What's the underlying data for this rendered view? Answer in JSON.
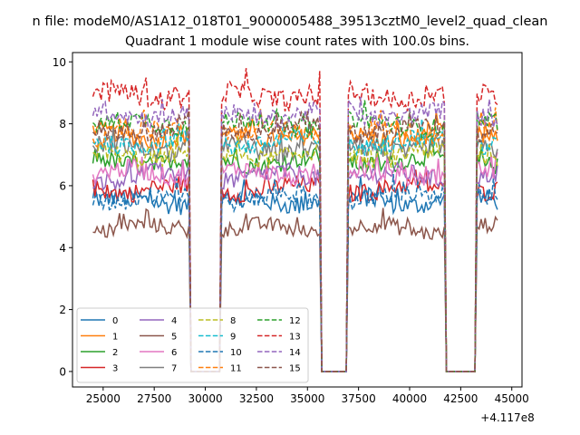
{
  "figure": {
    "suptitle": "n file: modeM0/AS1A12_018T01_9000005488_39513cztM0_level2_quad_clean",
    "title": "Quadrant 1 module wise count rates with 100.0s bins.",
    "offset_text": "+4.117e8"
  },
  "chart_data": {
    "type": "line",
    "title": "Quadrant 1 module wise count rates with 100.0s bins.",
    "xlabel": "",
    "ylabel": "",
    "x_offset": 411700000,
    "xlim": [
      23500,
      45500
    ],
    "ylim": [
      -0.5,
      10.3
    ],
    "xticks": [
      25000,
      27500,
      30000,
      32500,
      35000,
      37500,
      40000,
      42500,
      45000
    ],
    "xtick_labels": [
      "25000",
      "27500",
      "30000",
      "32500",
      "35000",
      "37500",
      "40000",
      "42500",
      "45000"
    ],
    "yticks": [
      0,
      2,
      4,
      6,
      8,
      10
    ],
    "ytick_labels": [
      "0",
      "2",
      "4",
      "6",
      "8",
      "10"
    ],
    "grid": false,
    "legend_position": "lower-left",
    "legend_columns": 4,
    "x_bins": {
      "start": 24500,
      "step": 100,
      "count": 199
    },
    "good_time_segments": [
      [
        24500,
        29200
      ],
      [
        30800,
        35600
      ],
      [
        37000,
        41700
      ],
      [
        43300,
        44300
      ]
    ],
    "gap_value": 0,
    "note": "Count rate series are approximated: each module fluctuates around its mean level within good-time segments and drops to ~0 in the gaps.",
    "series": [
      {
        "name": "0",
        "color": "#1f77b4",
        "dash": "solid",
        "mean": 5.5,
        "noise": 0.3
      },
      {
        "name": "1",
        "color": "#ff7f0e",
        "dash": "solid",
        "mean": 7.6,
        "noise": 0.3
      },
      {
        "name": "2",
        "color": "#2ca02c",
        "dash": "solid",
        "mean": 6.8,
        "noise": 0.3
      },
      {
        "name": "3",
        "color": "#d62728",
        "dash": "solid",
        "mean": 5.9,
        "noise": 0.3
      },
      {
        "name": "4",
        "color": "#9467bd",
        "dash": "solid",
        "mean": 6.3,
        "noise": 0.3
      },
      {
        "name": "5",
        "color": "#8c564b",
        "dash": "solid",
        "mean": 4.6,
        "noise": 0.25
      },
      {
        "name": "6",
        "color": "#e377c2",
        "dash": "solid",
        "mean": 6.4,
        "noise": 0.3
      },
      {
        "name": "7",
        "color": "#7f7f7f",
        "dash": "solid",
        "mean": 7.2,
        "noise": 0.3
      },
      {
        "name": "8",
        "color": "#bcbd22",
        "dash": "dashed",
        "mean": 7.0,
        "noise": 0.3
      },
      {
        "name": "9",
        "color": "#17becf",
        "dash": "dashed",
        "mean": 7.4,
        "noise": 0.3
      },
      {
        "name": "10",
        "color": "#1f77b4",
        "dash": "dashed",
        "mean": 5.6,
        "noise": 0.3
      },
      {
        "name": "11",
        "color": "#ff7f0e",
        "dash": "dashed",
        "mean": 7.7,
        "noise": 0.3
      },
      {
        "name": "12",
        "color": "#2ca02c",
        "dash": "dashed",
        "mean": 8.0,
        "noise": 0.3
      },
      {
        "name": "13",
        "color": "#d62728",
        "dash": "dashed",
        "mean": 8.9,
        "noise": 0.35
      },
      {
        "name": "14",
        "color": "#9467bd",
        "dash": "dashed",
        "mean": 8.3,
        "noise": 0.3
      },
      {
        "name": "15",
        "color": "#8c564b",
        "dash": "dashed",
        "mean": 7.8,
        "noise": 0.3
      }
    ]
  }
}
